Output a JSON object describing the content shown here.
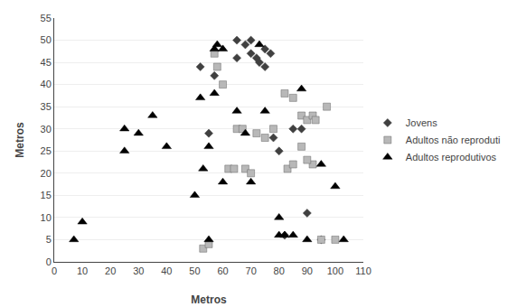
{
  "chart_data": {
    "type": "scatter",
    "xlabel": "Metros",
    "ylabel": "Metros",
    "xlim": [
      0,
      110
    ],
    "ylim": [
      0,
      55
    ],
    "xticks": [
      0,
      10,
      20,
      30,
      40,
      50,
      60,
      70,
      80,
      90,
      100,
      110
    ],
    "yticks": [
      0,
      5,
      10,
      15,
      20,
      25,
      30,
      35,
      40,
      45,
      50,
      55
    ],
    "grid": "y",
    "legend": "right",
    "series": [
      {
        "name": "Jovens",
        "color": "#404040",
        "marker": "diamond",
        "x": [
          55,
          57,
          65,
          68,
          70,
          72,
          73,
          75,
          78,
          80,
          85,
          88,
          90,
          95,
          75,
          70,
          65,
          52,
          82,
          77
        ],
        "values": [
          29,
          42,
          50,
          49,
          50,
          46,
          45,
          44,
          28,
          25,
          30,
          30,
          11,
          5,
          48,
          47,
          46,
          44,
          6,
          47
        ]
      },
      {
        "name": "Adultos não reproduti",
        "color": "#b8b8b8",
        "marker": "square",
        "x": [
          53,
          55,
          57,
          58,
          60,
          62,
          64,
          65,
          67,
          68,
          70,
          72,
          75,
          78,
          82,
          85,
          88,
          90,
          92,
          95,
          97,
          100,
          83,
          85,
          90,
          92,
          88,
          93
        ],
        "values": [
          3,
          4,
          47,
          44,
          40,
          21,
          21,
          30,
          30,
          21,
          20,
          29,
          28,
          30,
          38,
          37,
          33,
          32,
          22,
          5,
          35,
          5,
          21,
          22,
          23,
          33,
          26,
          32
        ]
      },
      {
        "name": "Adultos reprodutivos",
        "color": "#000000",
        "marker": "triangle-up",
        "x": [
          7,
          10,
          25,
          25,
          30,
          35,
          40,
          50,
          53,
          55,
          55,
          57,
          60,
          65,
          68,
          70,
          75,
          80,
          80,
          82,
          85,
          88,
          90,
          95,
          100,
          103,
          52,
          57,
          58,
          60,
          73
        ],
        "values": [
          5,
          9,
          25,
          30,
          29,
          33,
          26,
          15,
          21,
          5,
          26,
          48,
          18,
          34,
          29,
          18,
          34,
          10,
          6,
          6,
          6,
          39,
          5,
          22,
          17,
          5,
          37,
          38,
          49,
          48,
          49
        ]
      }
    ]
  }
}
